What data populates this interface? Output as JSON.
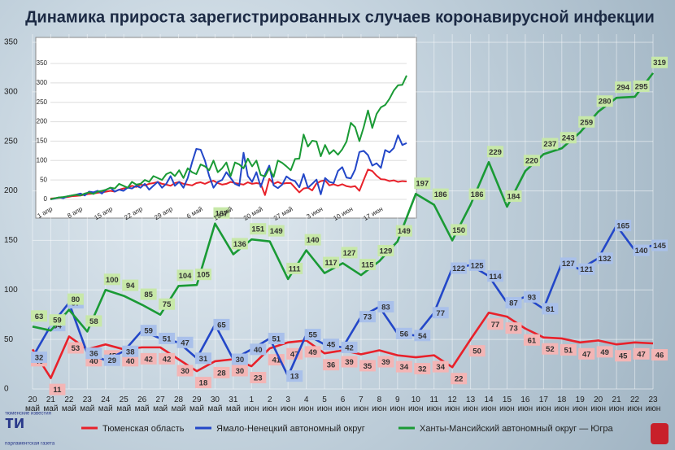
{
  "chart_data": [
    {
      "type": "line",
      "title": "Динамика прироста зарегистрированных случаев коронавирусной инфекции",
      "categories": [
        "20 май",
        "21 май",
        "22 май",
        "23 май",
        "24 май",
        "25 май",
        "26 май",
        "27 май",
        "28 май",
        "29 май",
        "30 май",
        "31 май",
        "1 июн",
        "2 июн",
        "3 июн",
        "4 июн",
        "5 июн",
        "6 июн",
        "7 июн",
        "8 июн",
        "9 июн",
        "10 июн",
        "11 июн",
        "12 июн",
        "13 июн",
        "14 июн",
        "15 июн",
        "16 июн",
        "17 июн",
        "18 июн",
        "19 июн",
        "20 июн",
        "21 июн",
        "22 июн",
        "23 июн"
      ],
      "series": [
        {
          "name": "Тюменская область",
          "color": "#e8212a",
          "values": [
            40,
            11,
            53,
            40,
            45,
            40,
            42,
            42,
            30,
            18,
            28,
            30,
            23,
            41,
            47,
            49,
            36,
            39,
            35,
            39,
            34,
            32,
            34,
            22,
            50,
            77,
            73,
            61,
            52,
            51,
            47,
            49,
            45,
            47,
            46
          ]
        },
        {
          "name": "Ямало-Ненецкий автономный округ",
          "color": "#2347c8",
          "values": [
            32,
            64,
            87,
            36,
            29,
            38,
            59,
            51,
            47,
            31,
            65,
            30,
            40,
            51,
            13,
            55,
            45,
            42,
            73,
            83,
            56,
            54,
            77,
            122,
            125,
            114,
            87,
            93,
            81,
            127,
            121,
            132,
            165,
            140,
            145
          ]
        },
        {
          "name": "Ханты-Мансийский автономный округ — Югра",
          "color": "#1a9a35",
          "values": [
            63,
            59,
            80,
            58,
            100,
            94,
            85,
            75,
            104,
            105,
            167,
            136,
            151,
            149,
            111,
            140,
            117,
            127,
            115,
            129,
            149,
            197,
            186,
            150,
            186,
            229,
            184,
            220,
            237,
            243,
            259,
            280,
            294,
            295,
            319
          ]
        }
      ],
      "ylim": [
        0,
        350
      ],
      "yticks": [
        0,
        50,
        100,
        150,
        200,
        250,
        300,
        350
      ],
      "grid": true,
      "legend": "bottom"
    },
    {
      "type": "line",
      "categories": [
        "1 апр",
        null,
        null,
        null,
        null,
        null,
        null,
        "8 апр",
        null,
        null,
        null,
        null,
        null,
        null,
        "15 апр",
        null,
        null,
        null,
        null,
        null,
        null,
        "22 апр",
        null,
        null,
        null,
        null,
        null,
        null,
        "29 апр",
        null,
        null,
        null,
        null,
        null,
        null,
        "6 май",
        null,
        null,
        null,
        null,
        null,
        null,
        "13 май",
        null,
        null,
        null,
        null,
        null,
        null,
        "20 май",
        null,
        null,
        null,
        null,
        null,
        null,
        "27 май",
        null,
        null,
        null,
        null,
        null,
        null,
        "3 июн",
        null,
        null,
        null,
        null,
        null,
        null,
        "10 июн",
        null,
        null,
        null,
        null,
        null,
        null,
        "17 июн",
        null,
        null,
        null,
        null,
        null,
        null
      ],
      "series": [
        {
          "color": "#e8212a",
          "values": [
            2,
            3,
            4,
            5,
            6,
            8,
            9,
            10,
            12,
            14,
            15,
            17,
            18,
            20,
            22,
            20,
            25,
            28,
            30,
            35,
            32,
            38,
            36,
            40,
            42,
            45,
            40,
            38,
            35,
            42,
            45,
            40,
            38,
            36,
            42,
            44,
            40,
            45,
            48,
            42,
            38,
            40,
            45,
            42,
            40,
            38,
            44,
            40,
            42,
            40,
            11,
            53,
            40,
            45,
            40,
            42,
            42,
            30,
            18,
            28,
            30,
            23,
            41,
            47,
            49,
            36,
            39,
            35,
            39,
            34,
            32,
            34,
            22,
            50,
            77,
            73,
            61,
            52,
            51,
            47,
            49,
            45,
            47,
            46
          ]
        },
        {
          "color": "#2347c8",
          "values": [
            0,
            2,
            5,
            3,
            8,
            10,
            12,
            15,
            10,
            20,
            18,
            22,
            15,
            25,
            30,
            20,
            25,
            22,
            30,
            28,
            35,
            30,
            40,
            25,
            35,
            45,
            30,
            40,
            60,
            35,
            45,
            30,
            55,
            95,
            130,
            128,
            100,
            60,
            30,
            45,
            50,
            70,
            55,
            40,
            35,
            120,
            60,
            45,
            70,
            32,
            64,
            87,
            36,
            29,
            38,
            59,
            51,
            47,
            31,
            65,
            30,
            40,
            51,
            13,
            55,
            45,
            42,
            73,
            83,
            56,
            54,
            77,
            122,
            125,
            114,
            87,
            93,
            81,
            127,
            121,
            132,
            165,
            140,
            145
          ]
        },
        {
          "color": "#1a9a35",
          "values": [
            0,
            3,
            5,
            6,
            8,
            10,
            12,
            10,
            15,
            18,
            14,
            20,
            22,
            25,
            30,
            28,
            40,
            35,
            30,
            45,
            38,
            40,
            50,
            45,
            60,
            55,
            50,
            65,
            70,
            60,
            75,
            55,
            80,
            70,
            65,
            90,
            85,
            75,
            100,
            70,
            80,
            95,
            60,
            95,
            90,
            80,
            105,
            85,
            100,
            63,
            59,
            80,
            58,
            100,
            94,
            85,
            75,
            104,
            105,
            167,
            136,
            151,
            149,
            111,
            140,
            117,
            127,
            115,
            129,
            149,
            197,
            186,
            150,
            186,
            229,
            184,
            220,
            237,
            243,
            259,
            280,
            294,
            295,
            319
          ]
        }
      ],
      "ylim": [
        0,
        350
      ],
      "yticks": [
        0,
        50,
        100,
        150,
        200,
        250,
        300,
        350
      ],
      "grid": true
    }
  ],
  "logo": {
    "mark": "ти",
    "top": "тюменские известия",
    "bottom": "парламентская газета"
  }
}
